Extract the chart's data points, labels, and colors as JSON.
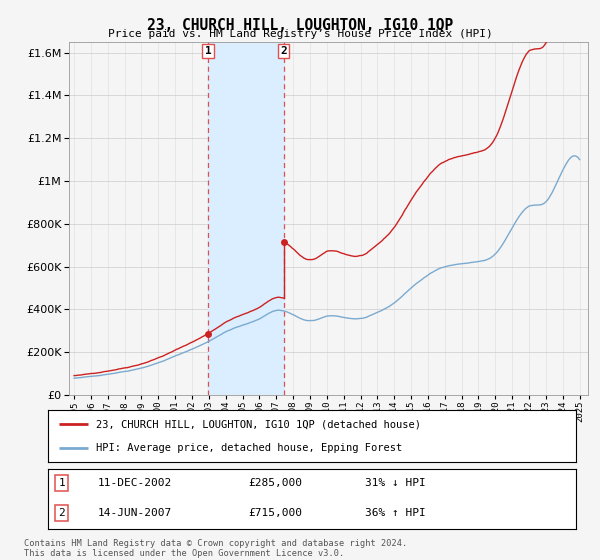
{
  "title": "23, CHURCH HILL, LOUGHTON, IG10 1QP",
  "subtitle": "Price paid vs. HM Land Registry’s House Price Index (HPI)",
  "legend_line1": "23, CHURCH HILL, LOUGHTON, IG10 1QP (detached house)",
  "legend_line2": "HPI: Average price, detached house, Epping Forest",
  "footnote": "Contains HM Land Registry data © Crown copyright and database right 2024.\nThis data is licensed under the Open Government Licence v3.0.",
  "sale1_label": "1",
  "sale1_date": "11-DEC-2002",
  "sale1_price": "£285,000",
  "sale1_hpi": "31% ↓ HPI",
  "sale2_label": "2",
  "sale2_date": "14-JUN-2007",
  "sale2_price": "£715,000",
  "sale2_hpi": "36% ↑ HPI",
  "sale1_x": 2002.95,
  "sale1_y": 285000,
  "sale2_x": 2007.45,
  "sale2_y": 715000,
  "vline1_x": 2002.95,
  "vline2_x": 2007.45,
  "shade_color": "#daeeff",
  "vline_color": "#e05050",
  "hpi_color": "#7aaad0",
  "price_color": "#cc2222",
  "background_color": "#f5f5f5",
  "plot_bg_color": "#f5f5f5",
  "ylim": [
    0,
    1650000
  ],
  "xlim": [
    1994.7,
    2025.5
  ],
  "yticks": [
    0,
    200000,
    400000,
    600000,
    800000,
    1000000,
    1200000,
    1400000,
    1600000
  ]
}
